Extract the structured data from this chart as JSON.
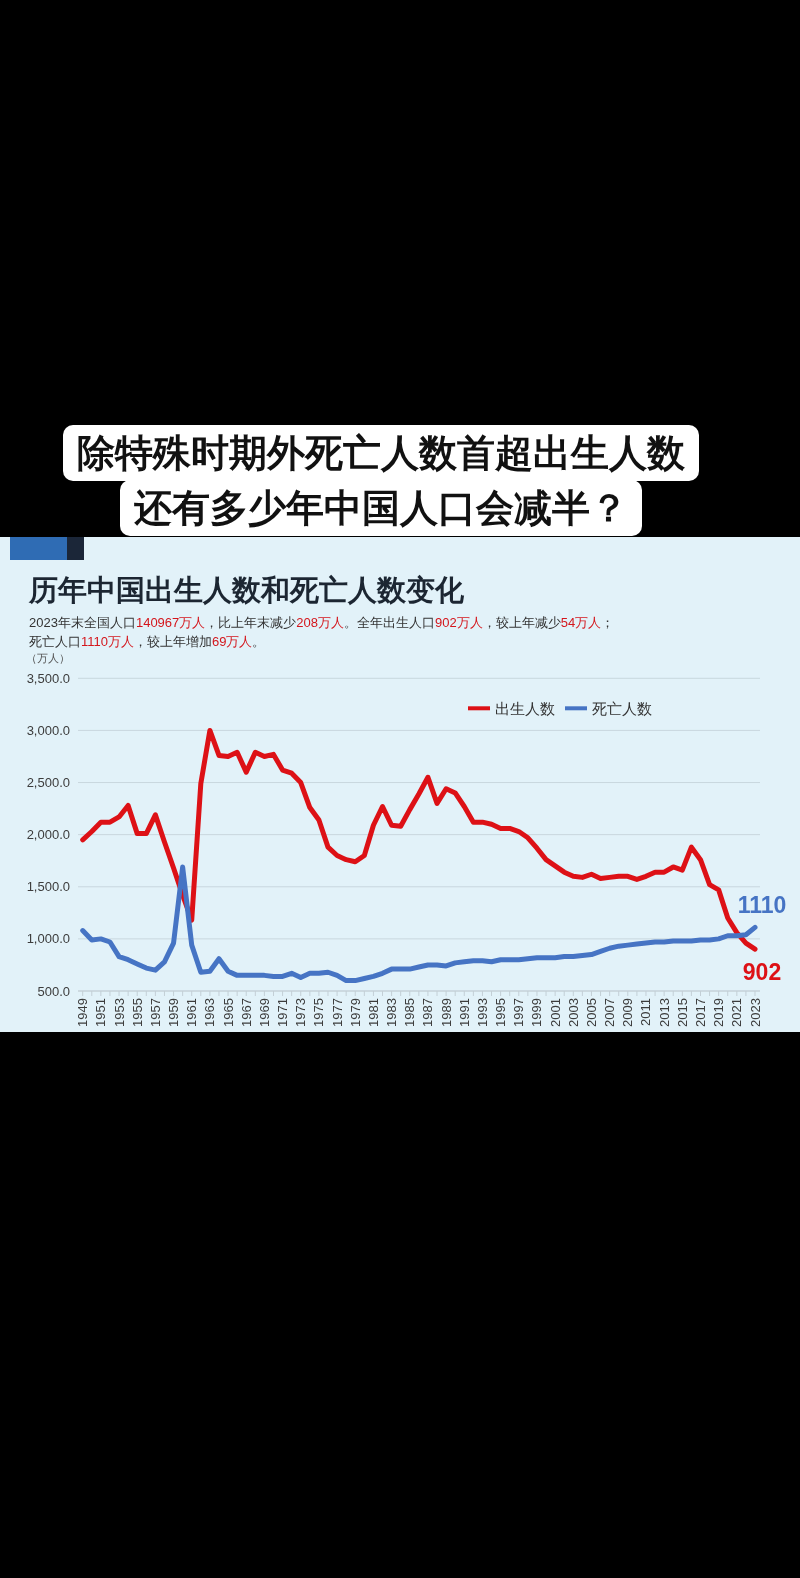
{
  "chart_data": {
    "type": "line",
    "title": "历年中国出生人数和死亡人数变化",
    "subtitle": "2023年末全国人口140967万人，比上年末减少208万人。全年出生人口902万人，较上年减少54万人；死亡人口1110万人，较上年增加69万人。",
    "ylabel": "（万人）",
    "annotations": [
      "除特殊时期外死亡人数首超出生人数",
      "还有多少年中国人口会减半？"
    ],
    "categories": [
      "1949",
      null,
      "1951",
      null,
      "1953",
      null,
      "1955",
      null,
      "1957",
      null,
      "1959",
      null,
      "1961",
      null,
      "1963",
      null,
      "1965",
      null,
      "1967",
      null,
      "1969",
      null,
      "1971",
      null,
      "1973",
      null,
      "1975",
      null,
      "1977",
      null,
      "1979",
      null,
      "1981",
      null,
      "1983",
      null,
      "1985",
      null,
      "1987",
      null,
      "1989",
      null,
      "1991",
      null,
      "1993",
      null,
      "1995",
      null,
      "1997",
      null,
      "1999",
      null,
      "2001",
      null,
      "2003",
      null,
      "2005",
      null,
      "2007",
      null,
      "2009",
      null,
      "2011",
      null,
      "2013",
      null,
      "2015",
      null,
      "2017",
      null,
      "2019",
      null,
      "2021",
      null,
      "2023"
    ],
    "series": [
      {
        "name": "出生人数",
        "color": "#dd1116",
        "values": [
          1950,
          2030,
          2120,
          2120,
          2170,
          2280,
          2010,
          2010,
          2190,
          1930,
          1680,
          1420,
          1180,
          2490,
          3000,
          2760,
          2750,
          2790,
          2600,
          2790,
          2750,
          2770,
          2620,
          2590,
          2500,
          2260,
          2140,
          1880,
          1800,
          1760,
          1740,
          1800,
          2090,
          2270,
          2090,
          2080,
          2240,
          2390,
          2550,
          2300,
          2440,
          2400,
          2270,
          2120,
          2120,
          2100,
          2060,
          2060,
          2030,
          1970,
          1870,
          1760,
          1700,
          1640,
          1600,
          1590,
          1620,
          1580,
          1590,
          1600,
          1600,
          1570,
          1600,
          1640,
          1640,
          1690,
          1660,
          1880,
          1760,
          1520,
          1470,
          1200,
          1060,
          960,
          902
        ],
        "value_labels": [
          null,
          null,
          null,
          null,
          null,
          null,
          null,
          null,
          null,
          null,
          null,
          null,
          null,
          null,
          null,
          null,
          null,
          null,
          null,
          null,
          null,
          null,
          null,
          null,
          null,
          null,
          null,
          null,
          null,
          null,
          null,
          null,
          null,
          null,
          null,
          null,
          null,
          null,
          null,
          null,
          null,
          null,
          null,
          null,
          null,
          null,
          null,
          null,
          null,
          null,
          null,
          null,
          null,
          null,
          null,
          null,
          null,
          null,
          null,
          null,
          null,
          null,
          null,
          null,
          null,
          null,
          null,
          null,
          null,
          null,
          null,
          null,
          null,
          null,
          "902"
        ]
      },
      {
        "name": "死亡人数",
        "color": "#4674c4",
        "values": [
          1080,
          990,
          1000,
          970,
          830,
          800,
          760,
          720,
          700,
          780,
          960,
          1690,
          940,
          680,
          690,
          810,
          690,
          650,
          650,
          650,
          650,
          640,
          640,
          670,
          630,
          670,
          670,
          680,
          650,
          600,
          600,
          620,
          640,
          670,
          710,
          710,
          710,
          730,
          750,
          750,
          740,
          770,
          780,
          790,
          790,
          780,
          800,
          800,
          800,
          810,
          820,
          820,
          820,
          830,
          830,
          840,
          850,
          880,
          910,
          930,
          940,
          950,
          960,
          970,
          970,
          980,
          980,
          980,
          990,
          990,
          1000,
          1030,
          1030,
          1040,
          1110
        ],
        "value_labels": [
          null,
          null,
          null,
          null,
          null,
          null,
          null,
          null,
          null,
          null,
          null,
          null,
          null,
          null,
          null,
          null,
          null,
          null,
          null,
          null,
          null,
          null,
          null,
          null,
          null,
          null,
          null,
          null,
          null,
          null,
          null,
          null,
          null,
          null,
          null,
          null,
          null,
          null,
          null,
          null,
          null,
          null,
          null,
          null,
          null,
          null,
          null,
          null,
          null,
          null,
          null,
          null,
          null,
          null,
          null,
          null,
          null,
          null,
          null,
          null,
          null,
          null,
          null,
          null,
          null,
          null,
          null,
          null,
          null,
          null,
          null,
          null,
          null,
          null,
          "1110"
        ]
      }
    ],
    "ylim": [
      500,
      3500
    ],
    "yticks": [
      {
        "value": 500,
        "label": "500.0"
      },
      {
        "value": 1000,
        "label": "1,000.0"
      },
      {
        "value": 1500,
        "label": "1,500.0"
      },
      {
        "value": 2000,
        "label": "2,000.0"
      },
      {
        "value": 2500,
        "label": "2,500.0"
      },
      {
        "value": 3000,
        "label": "3,000.0"
      },
      {
        "value": 3500,
        "label": "3,500.0"
      }
    ],
    "grid": "y",
    "legend": "top right"
  }
}
